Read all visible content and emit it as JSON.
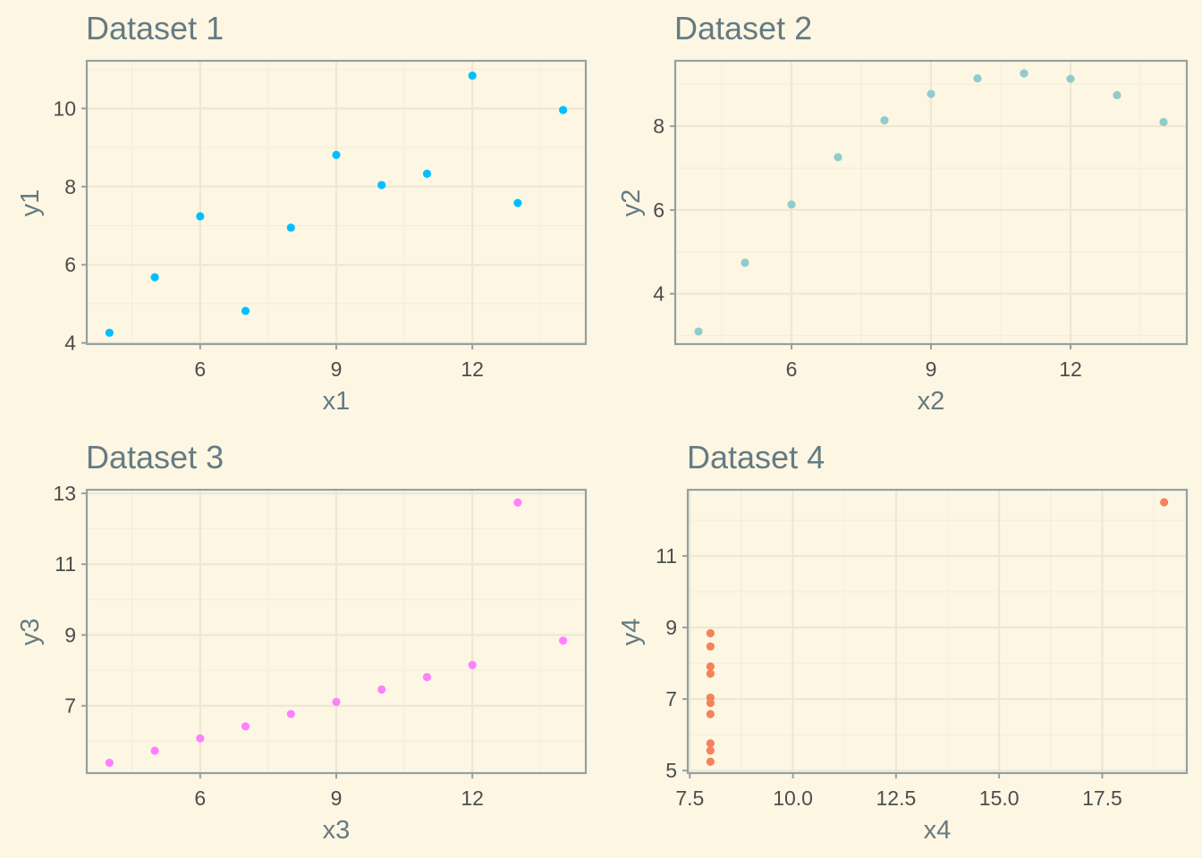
{
  "chart_data": [
    {
      "type": "scatter",
      "title": "Dataset 1",
      "xlabel": "x1",
      "ylabel": "y1",
      "color": "#00bfff",
      "xlim": [
        3.5,
        14.5
      ],
      "ylim": [
        3.97,
        11.22
      ],
      "xticks": [
        6,
        9,
        12
      ],
      "yticks": [
        4,
        6,
        8,
        10
      ],
      "x": [
        10,
        8,
        13,
        9,
        11,
        14,
        6,
        4,
        12,
        7,
        5
      ],
      "y": [
        8.04,
        6.95,
        7.58,
        8.81,
        8.33,
        9.96,
        7.24,
        4.26,
        10.84,
        4.82,
        5.68
      ],
      "grid": true
    },
    {
      "type": "scatter",
      "title": "Dataset 2",
      "xlabel": "x2",
      "ylabel": "y2",
      "color": "#8fcccc",
      "xlim": [
        3.5,
        14.5
      ],
      "ylim": [
        2.8,
        9.56
      ],
      "xticks": [
        6,
        9,
        12
      ],
      "yticks": [
        4,
        6,
        8
      ],
      "x": [
        10,
        8,
        13,
        9,
        11,
        14,
        6,
        4,
        12,
        7,
        5
      ],
      "y": [
        9.14,
        8.14,
        8.74,
        8.77,
        9.26,
        8.1,
        6.13,
        3.1,
        9.13,
        7.26,
        4.74
      ],
      "grid": true
    },
    {
      "type": "scatter",
      "title": "Dataset 3",
      "xlabel": "x3",
      "ylabel": "y3",
      "color": "#ff80ff",
      "xlim": [
        3.5,
        14.5
      ],
      "ylim": [
        5.1,
        13.1
      ],
      "xticks": [
        6,
        9,
        12
      ],
      "yticks": [
        7,
        9,
        11,
        13
      ],
      "x": [
        10,
        8,
        13,
        9,
        11,
        14,
        6,
        4,
        12,
        7,
        5
      ],
      "y": [
        7.46,
        6.77,
        12.74,
        7.11,
        7.81,
        8.84,
        6.08,
        5.39,
        8.15,
        6.42,
        5.73
      ],
      "grid": true
    },
    {
      "type": "scatter",
      "title": "Dataset 4",
      "xlabel": "x4",
      "ylabel": "y4",
      "color": "#f4825a",
      "xlim": [
        7.45,
        19.55
      ],
      "ylim": [
        4.93,
        12.85
      ],
      "xticks": [
        7.5,
        10.0,
        12.5,
        15.0,
        17.5
      ],
      "xtick_labels": [
        "7.5",
        "10.0",
        "12.5",
        "15.0",
        "17.5"
      ],
      "yticks": [
        5,
        7,
        9,
        11
      ],
      "x": [
        8,
        8,
        8,
        8,
        8,
        8,
        8,
        19,
        8,
        8,
        8
      ],
      "y": [
        6.58,
        5.76,
        7.71,
        8.84,
        8.47,
        7.04,
        5.25,
        12.5,
        5.56,
        7.91,
        6.89
      ],
      "grid": true
    }
  ]
}
